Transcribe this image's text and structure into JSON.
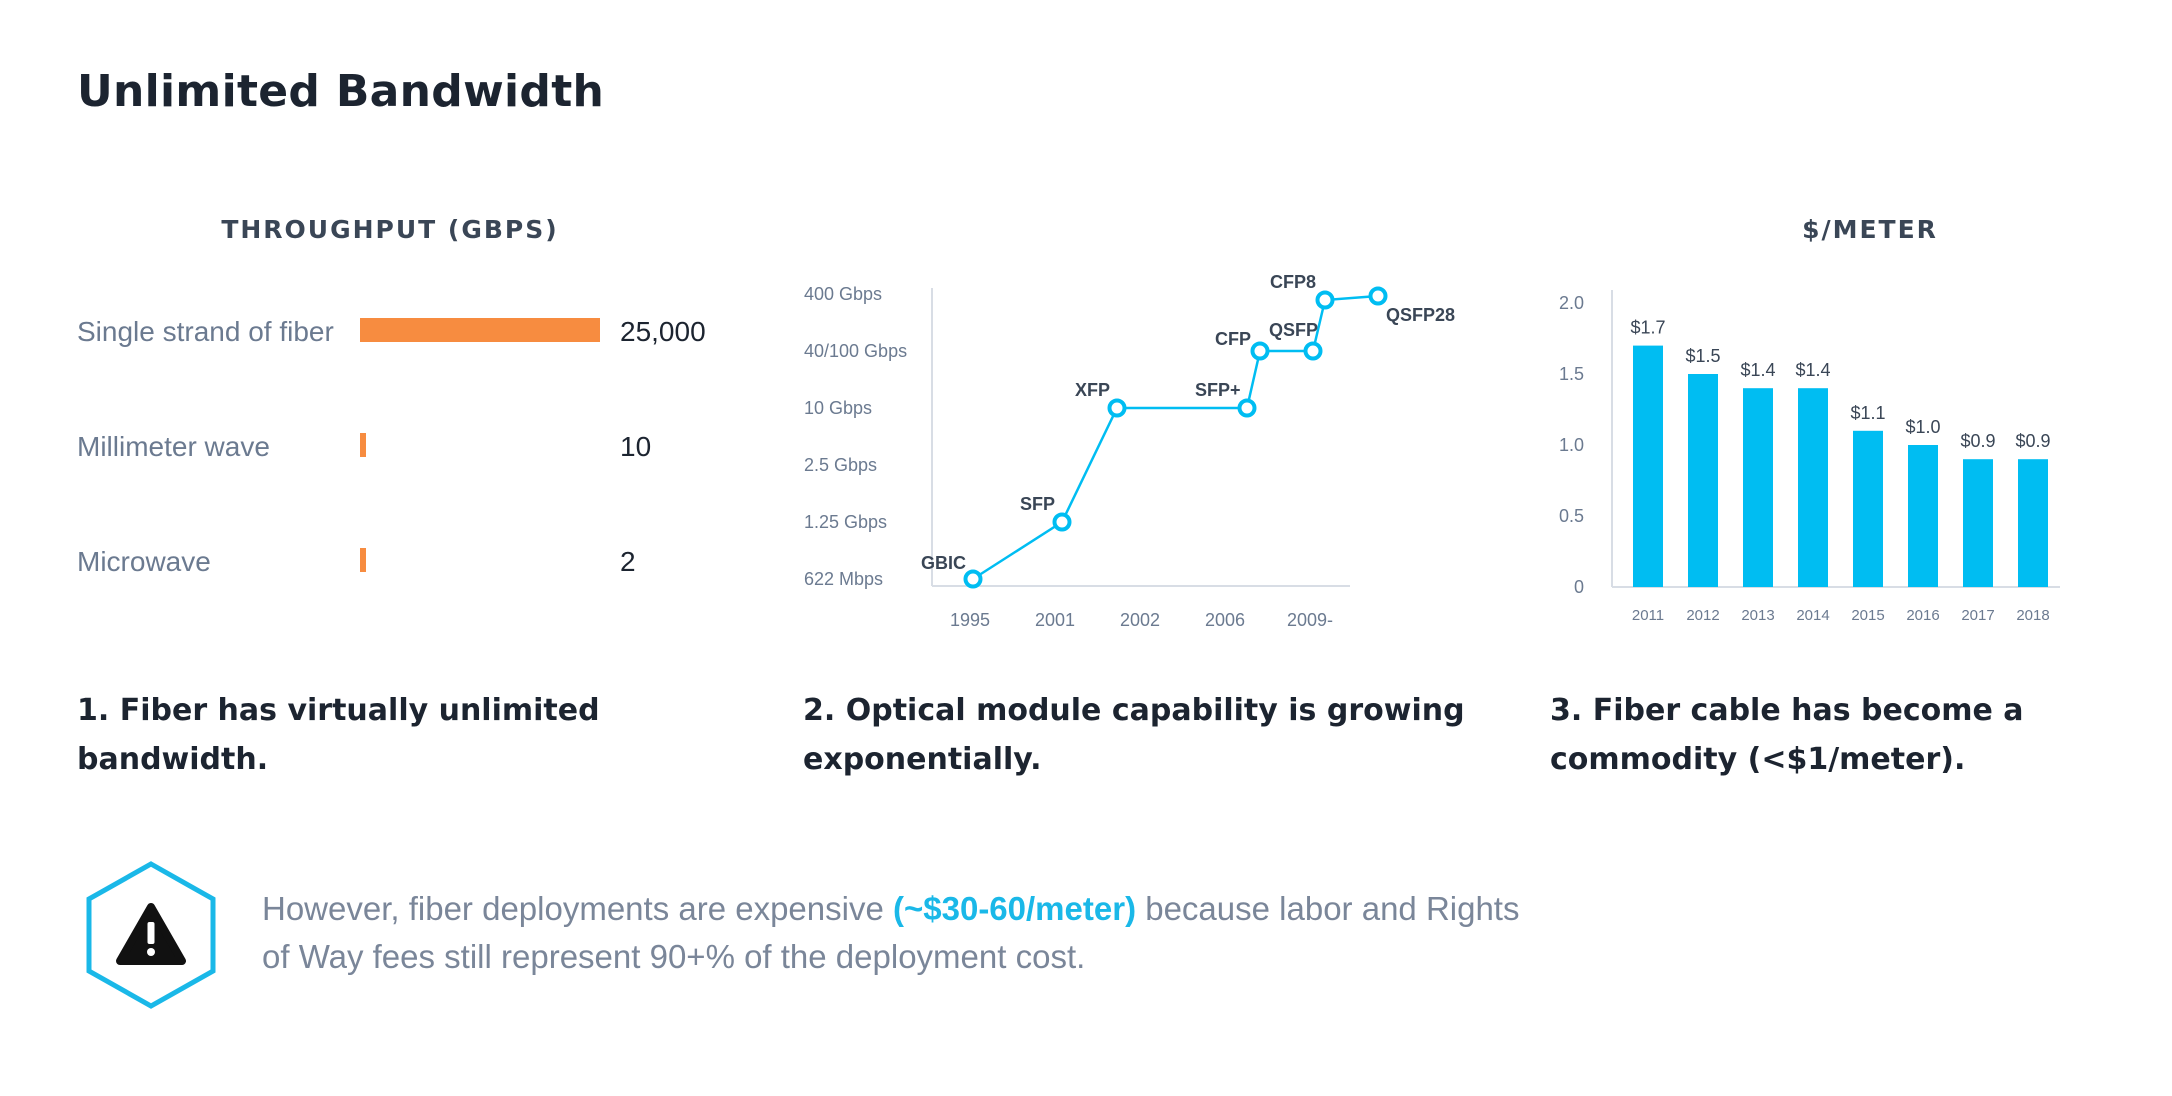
{
  "title": "Unlimited Bandwidth",
  "colors": {
    "orange": "#f78c40",
    "cyan": "#00bdf2",
    "dark": "#1c2430",
    "grey_text": "#7a8699",
    "axis": "#d8dde5"
  },
  "charts": {
    "throughput": {
      "heading": "THROUGHPUT (GBPS)",
      "caption_line1": "1. Fiber has virtually unlimited",
      "caption_line2": "bandwidth."
    },
    "optics": {
      "caption_line1": "2. Optical module capability is growing",
      "caption_line2": "exponentially."
    },
    "cost": {
      "heading": "$/METER",
      "caption_line1": "3. Fiber cable has become a",
      "caption_line2": "commodity (<$1/meter)."
    }
  },
  "chart_data": [
    {
      "type": "bar",
      "orientation": "horizontal",
      "title": "THROUGHPUT (GBPS)",
      "categories": [
        "Single strand of fiber",
        "Millimeter wave",
        "Microwave"
      ],
      "values": [
        25000,
        10,
        2
      ],
      "value_labels": [
        "25,000",
        "10",
        "2"
      ],
      "color": "#f78c40"
    },
    {
      "type": "line",
      "x": [
        "1995",
        "2001",
        "2002",
        "2006",
        "2009-"
      ],
      "y_ticks": [
        "400 Gbps",
        "40/100 Gbps",
        "10 Gbps",
        "2.5 Gbps",
        "1.25 Gbps",
        "622 Mbps"
      ],
      "points": [
        {
          "label": "GBIC",
          "x": "1995",
          "y": "622 Mbps"
        },
        {
          "label": "SFP",
          "x": "2001",
          "y": "1.25 Gbps"
        },
        {
          "label": "XFP",
          "x": "2002",
          "y": "10 Gbps"
        },
        {
          "label": "SFP+",
          "x": "2006",
          "y": "10 Gbps"
        },
        {
          "label": "CFP",
          "x": "2006",
          "y": "40/100 Gbps"
        },
        {
          "label": "QSFP",
          "x": "2009-",
          "y": "40/100 Gbps"
        },
        {
          "label": "CFP8",
          "x": "2009-",
          "y": "400 Gbps"
        },
        {
          "label": "QSFP28",
          "x": "2009-",
          "y": "400 Gbps"
        }
      ],
      "color": "#00bdf2"
    },
    {
      "type": "bar",
      "title": "$/METER",
      "categories": [
        "2011",
        "2012",
        "2013",
        "2014",
        "2015",
        "2016",
        "2017",
        "2018"
      ],
      "values": [
        1.7,
        1.5,
        1.4,
        1.4,
        1.1,
        1.0,
        0.9,
        0.9
      ],
      "value_labels": [
        "$1.7",
        "$1.5",
        "$1.4",
        "$1.4",
        "$1.1",
        "$1.0",
        "$0.9",
        "$0.9"
      ],
      "y_ticks": [
        "2.0",
        "1.5",
        "1.0",
        "0.5",
        "0"
      ],
      "ylim": [
        0,
        2.0
      ],
      "color": "#00bdf2"
    }
  ],
  "note": {
    "icon": "warning-icon",
    "text_before": "However, fiber deployments are expensive ",
    "highlight": "(~$30-60/meter)",
    "text_after": " because labor and Rights of Way fees still represent 90+% of the deployment cost."
  }
}
